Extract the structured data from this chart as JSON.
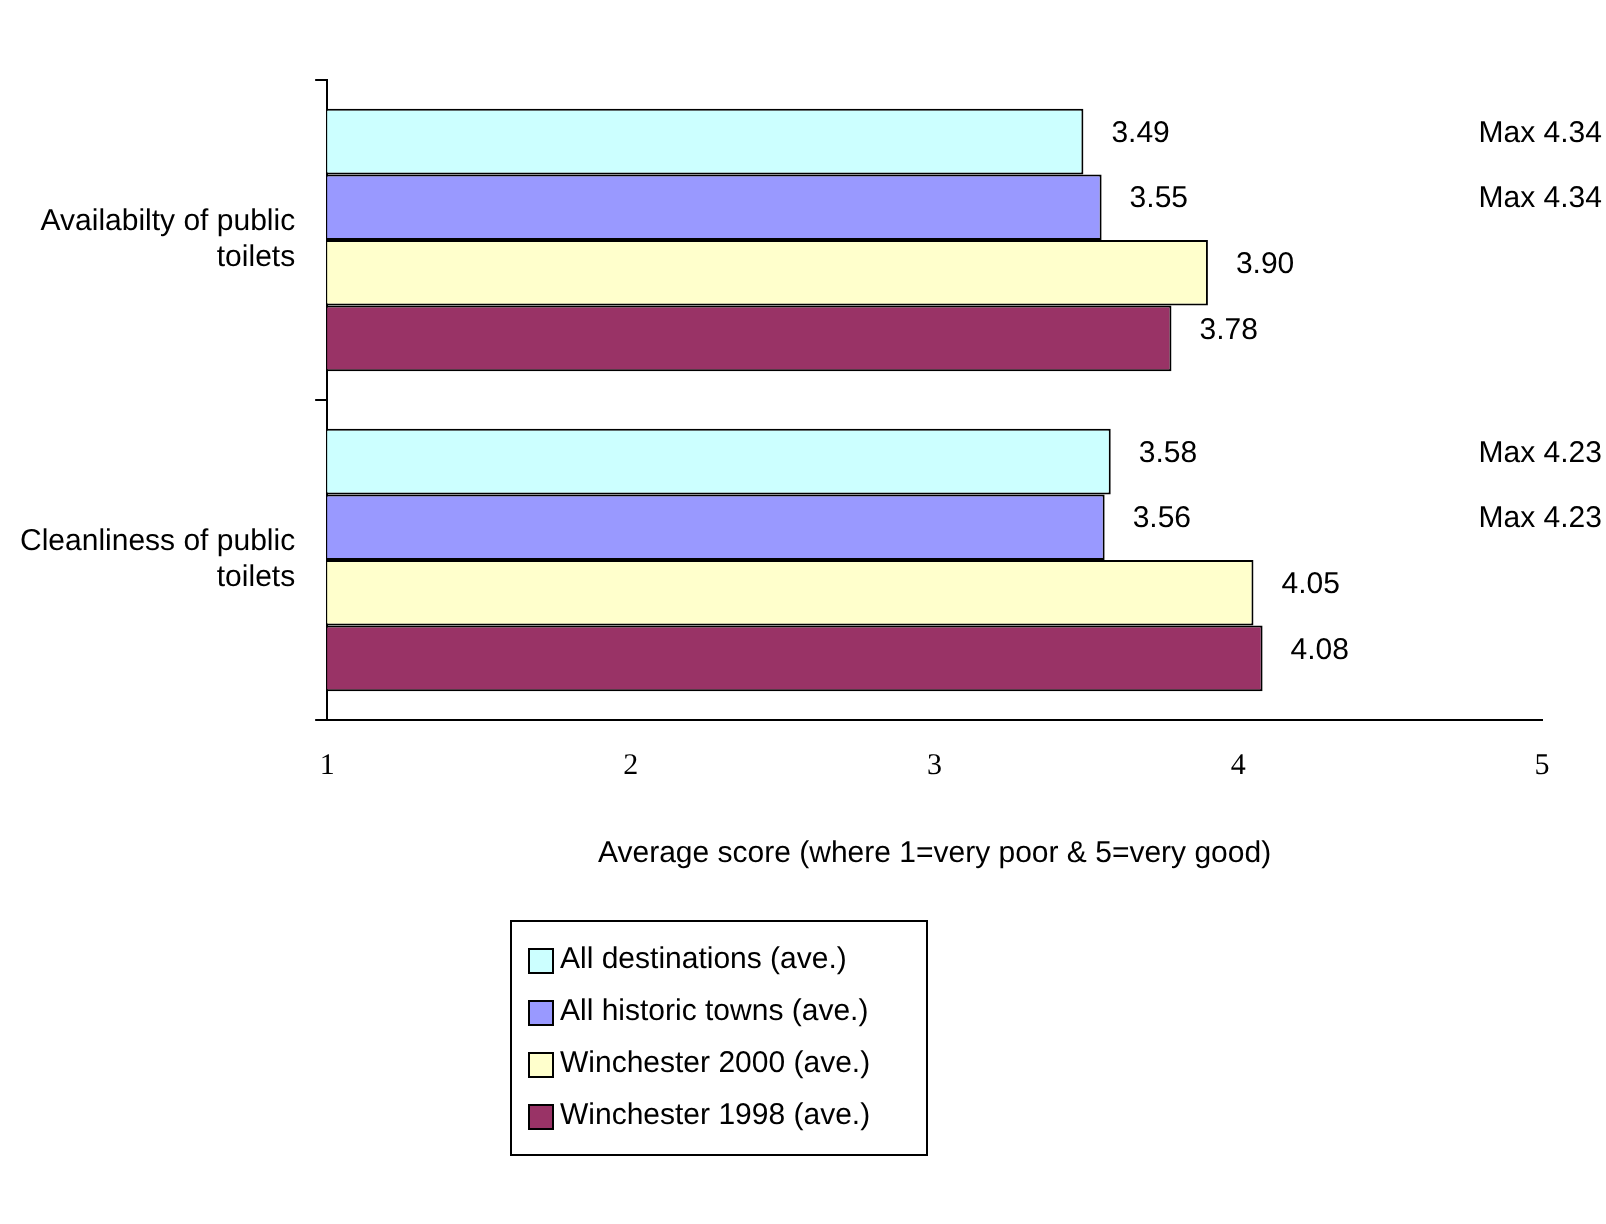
{
  "chart_data": {
    "type": "bar",
    "orientation": "horizontal",
    "xlabel": "Average score (where 1=very poor & 5=very good)",
    "categories": [
      "Availabilty of public toilets",
      "Cleanliness of public toilets"
    ],
    "series": [
      {
        "name": "All destinations (ave.)",
        "color": "#ccffff",
        "values": [
          3.49,
          3.58
        ],
        "value_labels": [
          "3.49",
          "3.58"
        ]
      },
      {
        "name": "All historic towns (ave.)",
        "color": "#9999ff",
        "values": [
          3.55,
          3.56
        ],
        "value_labels": [
          "3.55",
          "3.56"
        ]
      },
      {
        "name": "Winchester 2000 (ave.)",
        "color": "#ffffcc",
        "values": [
          3.9,
          4.05
        ],
        "value_labels": [
          "3.90",
          "4.05"
        ]
      },
      {
        "name": "Winchester 1998 (ave.)",
        "color": "#993366",
        "values": [
          3.78,
          4.08
        ],
        "value_labels": [
          "3.78",
          "4.08"
        ]
      }
    ],
    "xlim": [
      1,
      5
    ],
    "xticks": [
      1,
      2,
      3,
      4,
      5
    ],
    "grid": false,
    "legend": "bottom",
    "annotations": [
      "Max 4.34",
      "Max 4.34",
      "Max 4.23",
      "Max 4.23"
    ]
  }
}
